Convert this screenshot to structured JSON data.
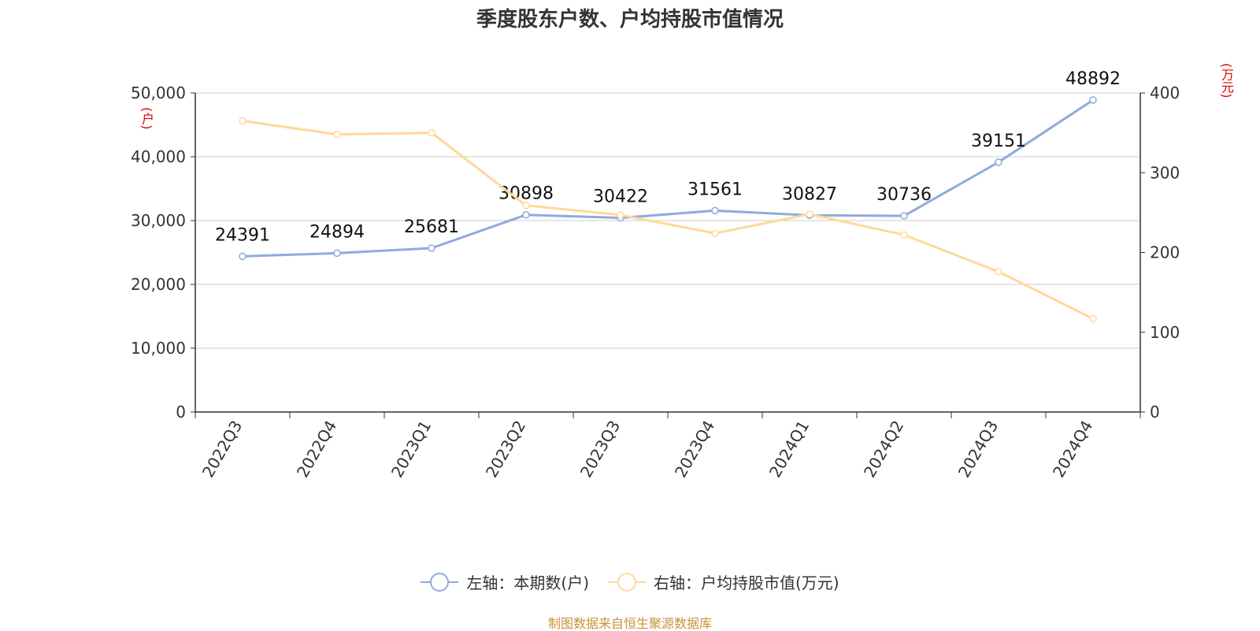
{
  "chart_data": {
    "type": "line",
    "title": "季度股东户数、户均持股市值情况",
    "categories": [
      "2022Q3",
      "2022Q4",
      "2023Q1",
      "2023Q2",
      "2023Q3",
      "2023Q4",
      "2024Q1",
      "2024Q2",
      "2024Q3",
      "2024Q4"
    ],
    "left_axis": {
      "unit": "(户)",
      "ylim": [
        0,
        50000
      ],
      "ticks": [
        "0",
        "10,000",
        "20,000",
        "30,000",
        "40,000",
        "50,000"
      ]
    },
    "right_axis": {
      "unit": "(万元)",
      "ylim": [
        0,
        400
      ],
      "ticks": [
        "0",
        "100",
        "200",
        "300",
        "400"
      ]
    },
    "series": [
      {
        "name": "左轴：本期数(户)",
        "axis": "left",
        "color": "#8faadc",
        "values": [
          24391,
          24894,
          25681,
          30898,
          30422,
          31561,
          30827,
          30736,
          39151,
          48892
        ],
        "show_labels": true
      },
      {
        "name": "右轴：户均持股市值(万元)",
        "axis": "right",
        "color": "#ffd999",
        "values": [
          365,
          348,
          350,
          259,
          247,
          224,
          248,
          222,
          176,
          117
        ],
        "show_labels": false
      }
    ],
    "grid": true,
    "legend_position": "bottom"
  },
  "source": "制图数据来自恒生聚源数据库"
}
